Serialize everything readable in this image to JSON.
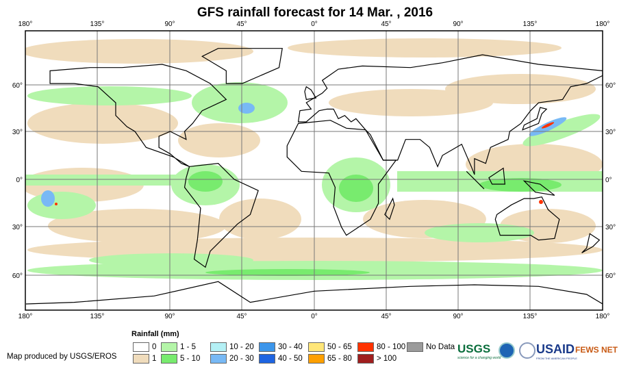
{
  "title": "GFS rainfall forecast for 14 Mar. , 2016",
  "lon_labels": [
    "180°",
    "135°",
    "90°",
    "45°",
    "0°",
    "45°",
    "90°",
    "135°",
    "180°"
  ],
  "lat_labels": [
    "60°",
    "30°",
    "0°",
    "30°",
    "60°"
  ],
  "legend": {
    "title": "Rainfall (mm)",
    "items": [
      {
        "label": "0",
        "color": "#ffffff"
      },
      {
        "label": "1",
        "color": "#f0dcbc"
      },
      {
        "label": "1 - 5",
        "color": "#b4f5a8"
      },
      {
        "label": "5 - 10",
        "color": "#78eb6e"
      },
      {
        "label": "10 - 20",
        "color": "#b4f0f5"
      },
      {
        "label": "20 - 30",
        "color": "#78b9f5"
      },
      {
        "label": "30 - 40",
        "color": "#3c96eb"
      },
      {
        "label": "40 - 50",
        "color": "#1e64e1"
      },
      {
        "label": "50 - 65",
        "color": "#ffe678"
      },
      {
        "label": "65 - 80",
        "color": "#ffa000"
      },
      {
        "label": "80 - 100",
        "color": "#ff3200"
      },
      {
        "label": "> 100",
        "color": "#a01e1e"
      },
      {
        "label": "No Data",
        "color": "#9b9b9b"
      }
    ]
  },
  "credit": "Map produced by USGS/EROS",
  "logos": {
    "usgs": "USGS",
    "usgs_tagline": "science for a changing world",
    "usaid": "USAID",
    "usaid_tagline": "FROM THE AMERICAN PEOPLE",
    "fews": "FEWS NET"
  }
}
